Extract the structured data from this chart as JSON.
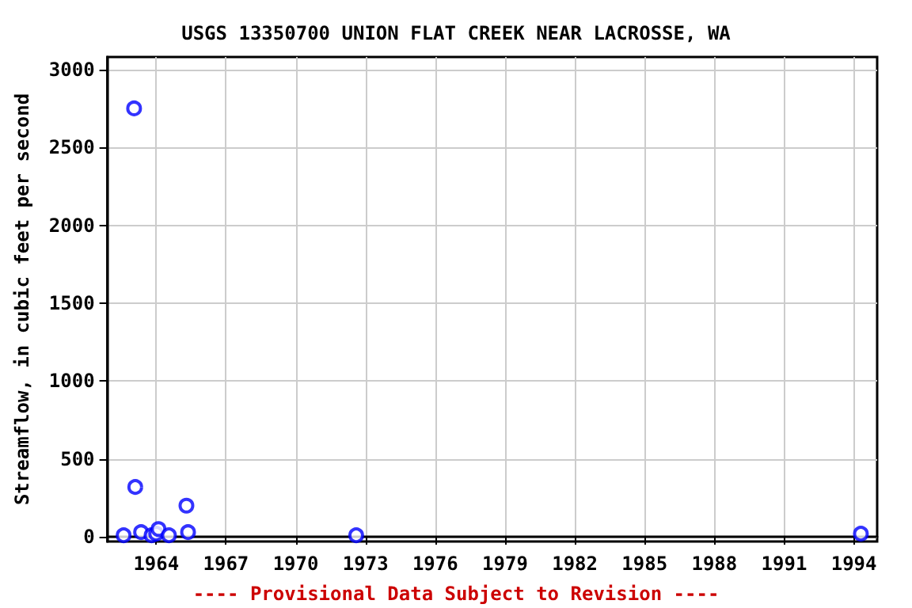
{
  "chart_data": {
    "type": "scatter",
    "title": "USGS 13350700 UNION FLAT CREEK NEAR LACROSSE, WA",
    "ylabel": "Streamflow, in cubic feet per second",
    "annotations": [
      "---- Provisional Data Subject to Revision ----"
    ],
    "x": [
      1962.6,
      1963.05,
      1963.1,
      1963.35,
      1963.8,
      1964.0,
      1964.1,
      1964.55,
      1965.3,
      1965.37,
      1972.6,
      1994.3
    ],
    "series": [
      {
        "color": "#0000ff",
        "values": [
          10,
          2750,
          320,
          30,
          10,
          20,
          50,
          10,
          200,
          30,
          10,
          20
        ]
      }
    ],
    "xlim": [
      1961.9,
      1995.0
    ],
    "xticks": [
      1964,
      1967,
      1970,
      1973,
      1976,
      1979,
      1982,
      1985,
      1988,
      1991,
      1994
    ],
    "ylim": [
      -30,
      3080
    ],
    "yticks": [
      0,
      500,
      1000,
      1500,
      2000,
      2500,
      3000
    ],
    "grid": true,
    "marker": "circle"
  }
}
